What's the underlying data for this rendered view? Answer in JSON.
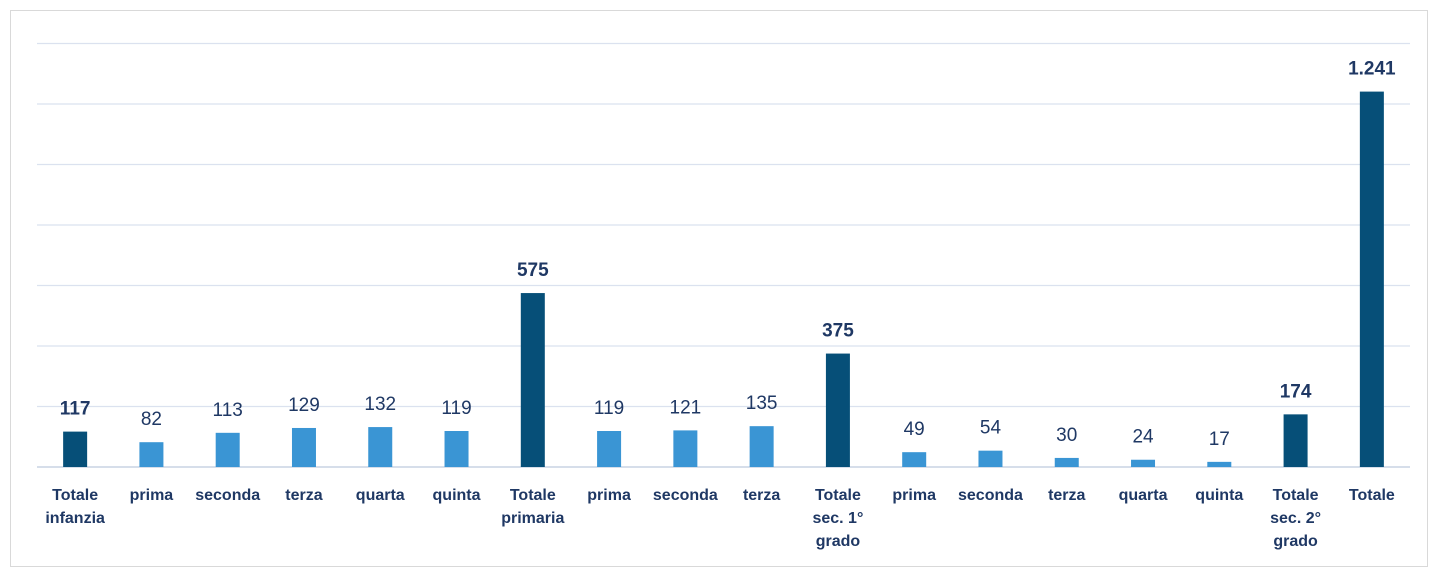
{
  "chart_data": {
    "type": "bar",
    "title": "",
    "xlabel": "",
    "ylabel": "",
    "ylim": [
      0,
      1400
    ],
    "y_gridline_step": 200,
    "y_axis_tick_labels_visible": false,
    "grid": true,
    "legend": "none",
    "categories": [
      "Totale infanzia",
      "prima",
      "seconda",
      "terza",
      "quarta",
      "quinta",
      "Totale primaria",
      "prima",
      "seconda",
      "terza",
      "Totale sec. 1° grado",
      "prima",
      "seconda",
      "terza",
      "quarta",
      "quinta",
      "Totale sec. 2° grado",
      "Totale"
    ],
    "category_lines": [
      [
        "Totale",
        "infanzia"
      ],
      [
        "prima"
      ],
      [
        "seconda"
      ],
      [
        "terza"
      ],
      [
        "quarta"
      ],
      [
        "quinta"
      ],
      [
        "Totale",
        "primaria"
      ],
      [
        "prima"
      ],
      [
        "seconda"
      ],
      [
        "terza"
      ],
      [
        "Totale",
        "sec. 1°",
        "grado"
      ],
      [
        "prima"
      ],
      [
        "seconda"
      ],
      [
        "terza"
      ],
      [
        "quarta"
      ],
      [
        "quinta"
      ],
      [
        "Totale",
        "sec. 2°",
        "grado"
      ],
      [
        "Totale"
      ]
    ],
    "values": [
      117,
      82,
      113,
      129,
      132,
      119,
      575,
      119,
      121,
      135,
      375,
      49,
      54,
      30,
      24,
      17,
      174,
      1241
    ],
    "value_labels": [
      "117",
      "82",
      "113",
      "129",
      "132",
      "119",
      "575",
      "119",
      "121",
      "135",
      "375",
      "49",
      "54",
      "30",
      "24",
      "17",
      "174",
      "1.241"
    ],
    "is_total": [
      true,
      false,
      false,
      false,
      false,
      false,
      true,
      false,
      false,
      false,
      true,
      false,
      false,
      false,
      false,
      false,
      true,
      true
    ],
    "colors": {
      "total": "#064f78",
      "class": "#3a95d4",
      "grid": "#dbe2ef",
      "axis": "#c9d3e3",
      "text": "#1f3864"
    }
  }
}
